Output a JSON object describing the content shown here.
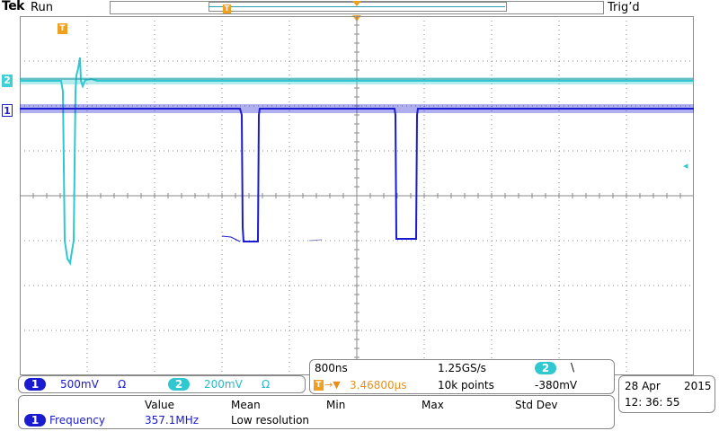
{
  "status": {
    "brand": "Tek",
    "run_state": "Run",
    "trigger_state": "Trig’d",
    "trigger_marker": "T"
  },
  "colors": {
    "ch1": "#1a1ad0",
    "ch2": "#30c8d0",
    "trigger": "#f0a020",
    "grid": "#8a8a8a"
  },
  "channels": {
    "ch1": {
      "number": "1",
      "scale": "500mV",
      "coupling_icon": "Ω"
    },
    "ch2": {
      "number": "2",
      "scale": "200mV",
      "coupling_icon": "Ω"
    }
  },
  "timebase": {
    "scale": "800ns",
    "sample_rate": "1.25GS/s",
    "trigger_position": "3.46800µs",
    "record_length": "10k points",
    "trigger_source": "2",
    "trigger_slope": "\\",
    "trigger_level": "-380mV",
    "trigger_prefix": "T→▼"
  },
  "measurements": {
    "headers": [
      "Value",
      "Mean",
      "Min",
      "Max",
      "Std Dev"
    ],
    "rows": [
      {
        "channel": "1",
        "name": "Frequency",
        "value": "357.1MHz",
        "mean": "Low resolution",
        "min": "",
        "max": "",
        "std_dev": ""
      }
    ]
  },
  "datetime": {
    "date": "28 Apr",
    "year": "2015",
    "time": "12: 36: 55"
  }
}
